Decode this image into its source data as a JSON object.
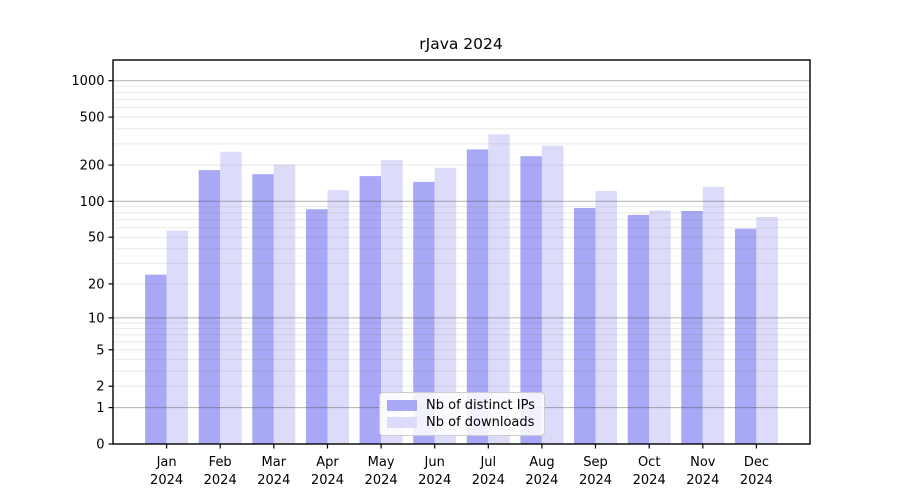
{
  "chart_data": {
    "type": "bar",
    "title": "rJava 2024",
    "scale": "log10(value+1)",
    "categories": [
      "Jan",
      "Feb",
      "Mar",
      "Apr",
      "May",
      "Jun",
      "Jul",
      "Aug",
      "Sep",
      "Oct",
      "Nov",
      "Dec"
    ],
    "year_label": "2024",
    "series": [
      {
        "name": "Nb of distinct IPs",
        "color": "#a8a8f6",
        "values": [
          24,
          182,
          168,
          86,
          162,
          145,
          270,
          237,
          88,
          77,
          83,
          59
        ]
      },
      {
        "name": "Nb of downloads",
        "color": "#dcdcfa",
        "values": [
          57,
          258,
          202,
          124,
          220,
          190,
          360,
          290,
          122,
          84,
          132,
          74
        ]
      }
    ],
    "y_ticks": [
      0,
      1,
      2,
      5,
      10,
      20,
      50,
      100,
      200,
      500,
      1000
    ],
    "y_minor_gridlines": [
      3,
      4,
      6,
      7,
      8,
      9,
      30,
      40,
      60,
      70,
      80,
      90,
      300,
      400,
      600,
      700,
      800,
      900
    ],
    "y_decade_gridlines": [
      1,
      10,
      100,
      1000
    ],
    "ylim": [
      0,
      1480
    ],
    "grid": true,
    "legend_position": "lower center"
  },
  "colors": {
    "axis": "#000000",
    "grid_light": "#777777",
    "grid_decade": "#444444",
    "legend_border": "#cccccc",
    "background": "#ffffff"
  }
}
